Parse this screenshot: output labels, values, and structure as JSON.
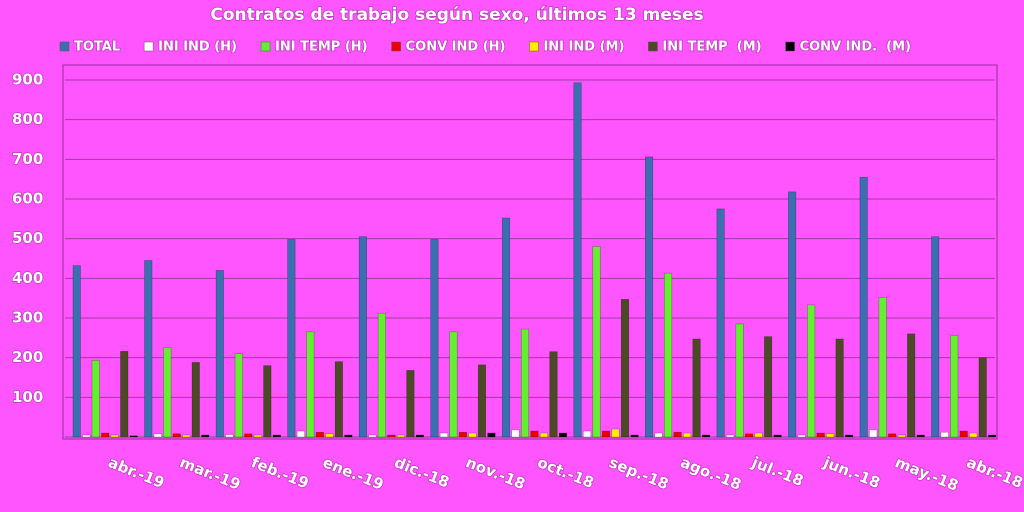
{
  "chart_data": {
    "type": "bar",
    "title": "Contratos de trabajo según sexo, últimos 13 meses",
    "categories": [
      "abr.-19",
      "mar.-19",
      "feb.-19",
      "ene.-19",
      "dic.-18",
      "nov.-18",
      "oct.-18",
      "sep.-18",
      "ago.-18",
      "jul.-18",
      "jun.-18",
      "may.-18",
      "abr.-18"
    ],
    "series": [
      {
        "name": "TOTAL",
        "color": "#3a6fb0",
        "values": [
          432,
          445,
          420,
          498,
          505,
          498,
          552,
          893,
          706,
          575,
          618,
          655,
          505
        ]
      },
      {
        "name": "INI IND (H)",
        "color": "#ffffff",
        "values": [
          5,
          8,
          6,
          15,
          5,
          10,
          18,
          15,
          10,
          5,
          5,
          18,
          12
        ]
      },
      {
        "name": "INI TEMP (H)",
        "color": "#66ee33",
        "values": [
          193,
          225,
          210,
          265,
          312,
          265,
          272,
          480,
          413,
          285,
          333,
          352,
          256
        ]
      },
      {
        "name": "CONV IND (H)",
        "color": "#ee0000",
        "values": [
          10,
          8,
          8,
          12,
          5,
          12,
          15,
          15,
          12,
          8,
          10,
          8,
          15
        ]
      },
      {
        "name": "INI IND (M)",
        "color": "#ffee00",
        "values": [
          5,
          5,
          5,
          8,
          5,
          10,
          10,
          20,
          10,
          10,
          8,
          5,
          10
        ]
      },
      {
        "name": "INI TEMP  (M)",
        "color": "#4b4a24",
        "values": [
          216,
          188,
          180,
          190,
          168,
          182,
          215,
          347,
          247,
          253,
          247,
          260,
          200
        ]
      },
      {
        "name": "CONV IND.  (M)",
        "color": "#000000",
        "values": [
          3,
          5,
          5,
          5,
          5,
          10,
          10,
          5,
          5,
          5,
          5,
          5,
          5
        ]
      }
    ],
    "ylim": [
      0,
      900
    ],
    "yticks": [
      100,
      200,
      300,
      400,
      500,
      600,
      700,
      800,
      900
    ],
    "grid": true
  }
}
